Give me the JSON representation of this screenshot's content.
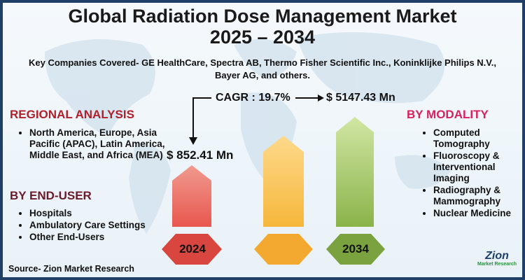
{
  "title": {
    "line1": "Global Radiation Dose Management Market",
    "line2": "2025 – 2034"
  },
  "companies": "Key Companies Covered- GE HealthCare, Spectra AB, Thermo Fisher Scientific Inc., Koninklijke Philips N.V., Bayer AG, and others.",
  "cagr": "CAGR : 19.7%",
  "value_2034": "$ 5147.43 Mn",
  "value_2024": "$ 852.41 Mn",
  "regional": {
    "heading": "REGIONAL ANALYSIS",
    "items": [
      "North America, Europe, Asia Pacific (APAC), Latin America, Middle East, and Africa (MEA)"
    ]
  },
  "end_user": {
    "heading": "BY END-USER",
    "items": [
      "Hospitals",
      "Ambulatory Care Settings",
      "Other End-Users"
    ]
  },
  "modality": {
    "heading": "BY MODALITY",
    "items": [
      "Computed Tomography",
      "Fluoroscopy & Interventional Imaging",
      "Radiography & Mammography",
      "Nuclear Medicine"
    ]
  },
  "years": {
    "left": "2024",
    "right": "2034"
  },
  "source": "Source- Zion Market Research",
  "logo": {
    "brand": "Zion",
    "sub": "Market Research"
  },
  "colors": {
    "border": "#1f3f66",
    "bar_left": "#e8574f",
    "bar_mid": "#f5b73b",
    "bar_right": "#8ab34a"
  }
}
